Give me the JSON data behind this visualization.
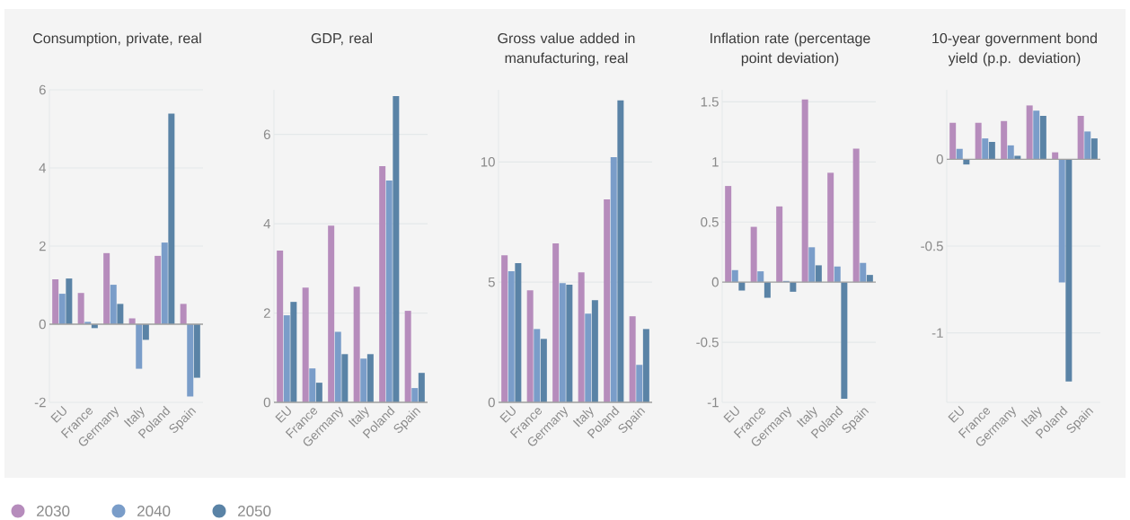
{
  "chart_data": [
    {
      "type": "bar",
      "title": "Consumption, private, real",
      "categories": [
        "EU",
        "France",
        "Germany",
        "Italy",
        "Poland",
        "Spain"
      ],
      "series": [
        {
          "name": "2030",
          "color": "#b68cbc",
          "values": [
            1.15,
            0.8,
            1.82,
            0.15,
            1.75,
            0.52
          ]
        },
        {
          "name": "2040",
          "color": "#7a9dc9",
          "values": [
            0.78,
            0.06,
            1.01,
            -1.14,
            2.09,
            -1.85
          ]
        },
        {
          "name": "2050",
          "color": "#5a83a6",
          "values": [
            1.17,
            -0.1,
            0.52,
            -0.4,
            5.39,
            -1.37
          ]
        }
      ],
      "ylim": [
        -2,
        6
      ],
      "yticks": [
        -2,
        0,
        2,
        4,
        6
      ],
      "grid": "y",
      "legend": "bottom"
    },
    {
      "type": "bar",
      "title": "GDP, real",
      "categories": [
        "EU",
        "France",
        "Germany",
        "Italy",
        "Poland",
        "Spain"
      ],
      "series": [
        {
          "color": "#b68cbc",
          "values": [
            3.4,
            2.57,
            3.96,
            2.59,
            5.29,
            2.05
          ]
        },
        {
          "color": "#7a9dc9",
          "values": [
            1.95,
            0.76,
            1.58,
            0.98,
            4.97,
            0.32
          ]
        },
        {
          "color": "#5a83a6",
          "values": [
            2.25,
            0.44,
            1.08,
            1.08,
            6.86,
            0.66
          ]
        }
      ],
      "ylim": [
        0,
        7
      ],
      "yticks": [
        0,
        2,
        4,
        6
      ],
      "grid": "y"
    },
    {
      "type": "bar",
      "title": "Gross value added in manufacturing, real",
      "categories": [
        "EU",
        "France",
        "Germany",
        "Italy",
        "Poland",
        "Spain"
      ],
      "series": [
        {
          "color": "#b68cbc",
          "values": [
            6.12,
            4.66,
            6.61,
            5.41,
            8.44,
            3.58
          ]
        },
        {
          "color": "#7a9dc9",
          "values": [
            5.45,
            3.05,
            4.96,
            3.69,
            10.2,
            1.56
          ]
        },
        {
          "color": "#5a83a6",
          "values": [
            5.79,
            2.64,
            4.89,
            4.25,
            12.56,
            3.05
          ]
        }
      ],
      "ylim": [
        0,
        13
      ],
      "yticks": [
        0,
        5,
        10
      ],
      "grid": "y"
    },
    {
      "type": "bar",
      "title": "Inflation rate (percentage point deviation)",
      "categories": [
        "EU",
        "France",
        "Germany",
        "Italy",
        "Poland",
        "Spain"
      ],
      "series": [
        {
          "color": "#b68cbc",
          "values": [
            0.8,
            0.46,
            0.63,
            1.52,
            0.91,
            1.11
          ]
        },
        {
          "color": "#7a9dc9",
          "values": [
            0.1,
            0.09,
            0.01,
            0.29,
            0.13,
            0.16
          ]
        },
        {
          "color": "#5a83a6",
          "values": [
            -0.07,
            -0.13,
            -0.08,
            0.14,
            -0.97,
            0.06
          ]
        }
      ],
      "ylim": [
        -1,
        1.6
      ],
      "yticks": [
        -1,
        -0.5,
        0,
        0.5,
        1,
        1.5
      ],
      "grid": "y"
    },
    {
      "type": "bar",
      "title": "10-year government bond yield (p.p. deviation)",
      "categories": [
        "EU",
        "France",
        "Germany",
        "Italy",
        "Poland",
        "Spain"
      ],
      "series": [
        {
          "color": "#b68cbc",
          "values": [
            0.21,
            0.21,
            0.22,
            0.31,
            0.04,
            0.25
          ]
        },
        {
          "color": "#7a9dc9",
          "values": [
            0.06,
            0.12,
            0.08,
            0.28,
            -0.71,
            0.16
          ]
        },
        {
          "color": "#5a83a6",
          "values": [
            -0.03,
            0.1,
            0.02,
            0.25,
            -1.28,
            0.12
          ]
        }
      ],
      "ylim": [
        -1.4,
        0.4
      ],
      "yticks": [
        {
          "value": -1.4,
          "label": null
        },
        -1,
        -0.5,
        0
      ],
      "grid": "y"
    }
  ]
}
